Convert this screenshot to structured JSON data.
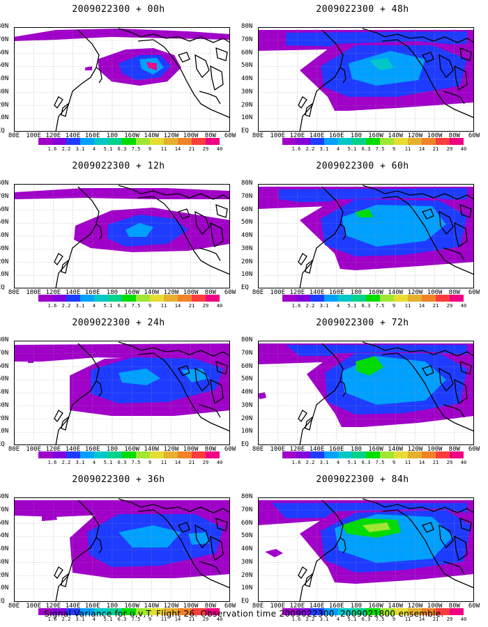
{
  "footer": "Signal Variance for u,v,T. Flight 26. Observation time 2009022300. 2009021800 ensemble.",
  "lat_labels": [
    "80N",
    "70N",
    "60N",
    "50N",
    "40N",
    "30N",
    "20N",
    "10N",
    "EQ"
  ],
  "lon_labels": [
    "80E",
    "100E",
    "120E",
    "140E",
    "160E",
    "180",
    "160W",
    "140W",
    "120W",
    "100W",
    "80W",
    "60W"
  ],
  "colorbar": {
    "values": [
      "1.6",
      "2.2",
      "3.1",
      "4",
      "5.1",
      "6.3",
      "7.5",
      "9",
      "11",
      "14",
      "21",
      "29",
      "40"
    ],
    "colors": [
      "#a000c8",
      "#8200dc",
      "#1e3cff",
      "#00a0ff",
      "#00c8c8",
      "#00d28c",
      "#00dc00",
      "#a0e632",
      "#e6dc32",
      "#e6af2d",
      "#f08228",
      "#fa3c3c",
      "#f00082"
    ]
  },
  "panels": [
    {
      "title": "2009022300 + 00h",
      "lead_hours": 0
    },
    {
      "title": "2009022300 + 12h",
      "lead_hours": 12
    },
    {
      "title": "2009022300 + 24h",
      "lead_hours": 24
    },
    {
      "title": "2009022300 + 36h",
      "lead_hours": 36
    },
    {
      "title": "2009022300 + 48h",
      "lead_hours": 48
    },
    {
      "title": "2009022300 + 60h",
      "lead_hours": 60
    },
    {
      "title": "2009022300 + 72h",
      "lead_hours": 72
    },
    {
      "title": "2009022300 + 84h",
      "lead_hours": 84
    }
  ]
}
